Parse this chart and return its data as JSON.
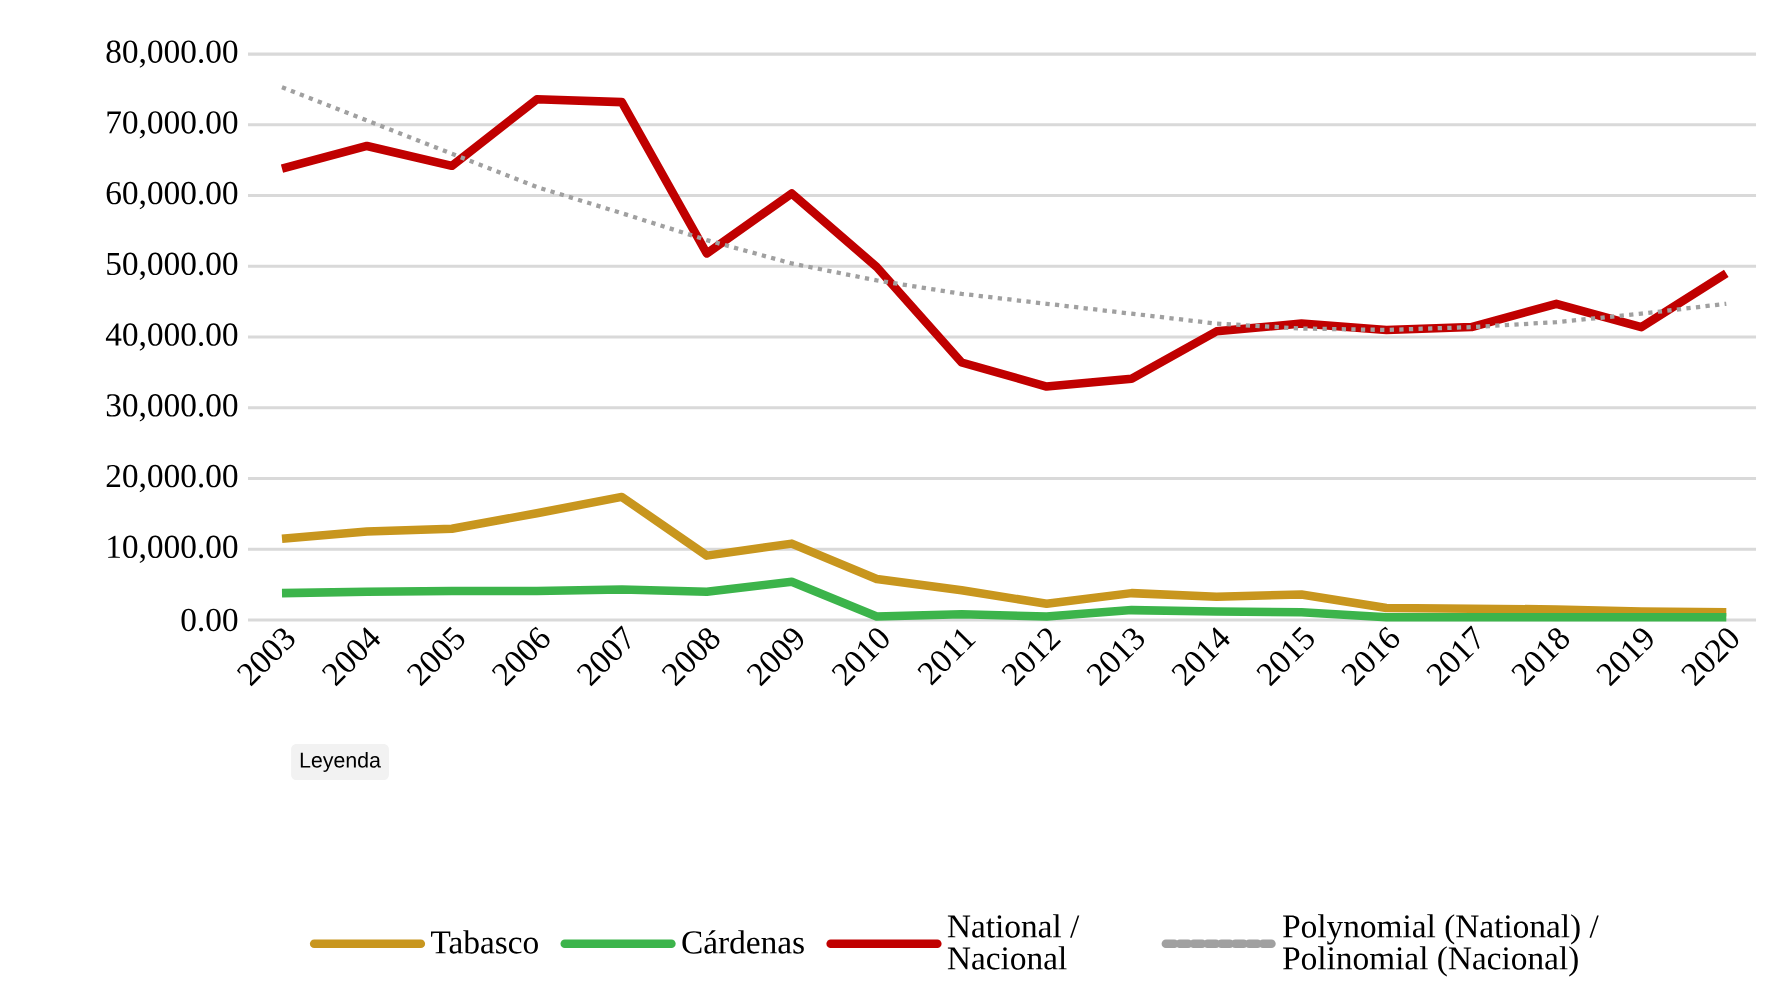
{
  "chart_data": {
    "type": "line",
    "categories": [
      "2003",
      "2004",
      "2005",
      "2006",
      "2007",
      "2008",
      "2009",
      "2010",
      "2011",
      "2012",
      "2013",
      "2014",
      "2015",
      "2016",
      "2017",
      "2018",
      "2019",
      "2020"
    ],
    "series": [
      {
        "name": "Tabasco",
        "color": "#c8961e",
        "values": [
          11500,
          12500,
          12900,
          15100,
          17400,
          9100,
          10800,
          5800,
          4200,
          2300,
          3800,
          3300,
          3600,
          1700,
          1600,
          1500,
          1200,
          1100
        ]
      },
      {
        "name": "Cárdenas",
        "color": "#3cb44b",
        "values": [
          3800,
          4000,
          4100,
          4100,
          4300,
          4000,
          5400,
          500,
          800,
          500,
          1400,
          1200,
          1100,
          400,
          400,
          400,
          400,
          400
        ]
      },
      {
        "name": "National / Nacional",
        "color": "#c00000",
        "values": [
          63800,
          67000,
          64200,
          73600,
          73200,
          51800,
          60300,
          49900,
          36400,
          33000,
          34100,
          40800,
          41900,
          41000,
          41400,
          44700,
          41400,
          49000
        ]
      },
      {
        "name": "Polynomial (National) / Polinomial (Nacional)",
        "color": "#a0a0a0",
        "line_style": "dotted",
        "values": [
          75300,
          70600,
          65900,
          61200,
          57500,
          53700,
          50400,
          48000,
          46100,
          44700,
          43300,
          41900,
          41200,
          41000,
          41400,
          42100,
          43300,
          44700
        ]
      }
    ],
    "ylim": [
      0,
      80000
    ],
    "yticks": [
      {
        "value": 0,
        "label": "0.00"
      },
      {
        "value": 10000,
        "label": "10,000.00"
      },
      {
        "value": 20000,
        "label": "20,000.00"
      },
      {
        "value": 30000,
        "label": "30,000.00"
      },
      {
        "value": 40000,
        "label": "40,000.00"
      },
      {
        "value": 50000,
        "label": "50,000.00"
      },
      {
        "value": 60000,
        "label": "60,000.00"
      },
      {
        "value": 70000,
        "label": "70,000.00"
      },
      {
        "value": 80000,
        "label": "80,000.00"
      }
    ],
    "grid": "y",
    "legend": "bottom",
    "legend_title": "Leyenda",
    "marker": "none",
    "line_style": "solid"
  }
}
